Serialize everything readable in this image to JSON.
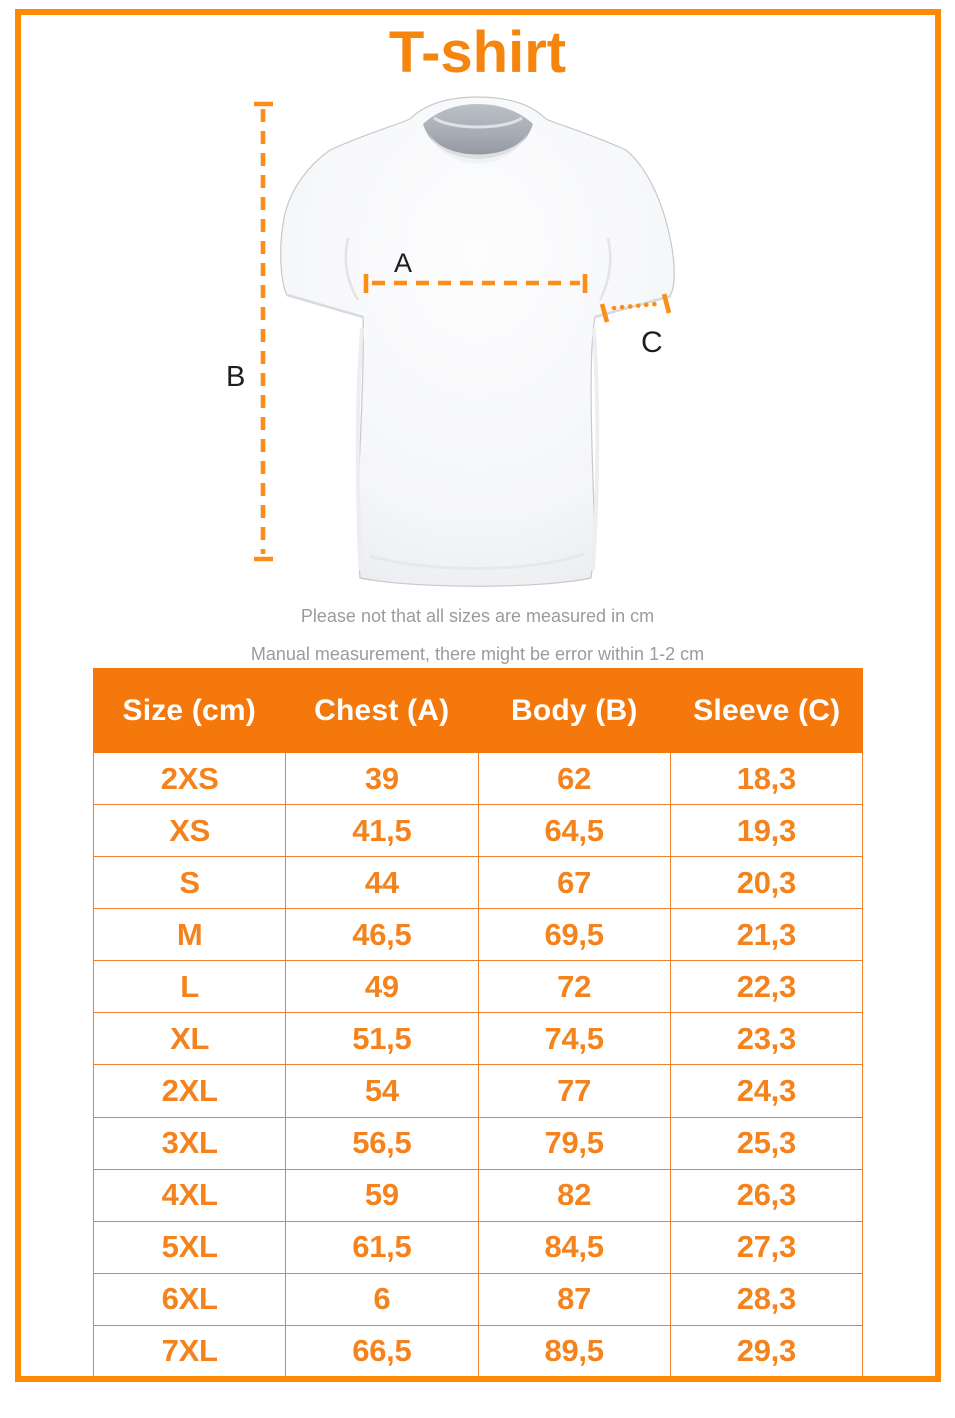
{
  "title": "T-shirt",
  "notes": [
    "Please not that all sizes are measured in cm",
    "Manual measurement, there might be error within 1-2 cm"
  ],
  "diagram": {
    "chest_label": "A",
    "body_label": "B",
    "sleeve_label": "C"
  },
  "chart_data": {
    "type": "table",
    "title": "T-shirt",
    "columns": [
      "Size (cm)",
      "Chest (A)",
      "Body (B)",
      "Sleeve (C)"
    ],
    "rows": [
      [
        "2XS",
        "39",
        "62",
        "18,3"
      ],
      [
        "XS",
        "41,5",
        "64,5",
        "19,3"
      ],
      [
        "S",
        "44",
        "67",
        "20,3"
      ],
      [
        "M",
        "46,5",
        "69,5",
        "21,3"
      ],
      [
        "L",
        "49",
        "72",
        "22,3"
      ],
      [
        "XL",
        "51,5",
        "74,5",
        "23,3"
      ],
      [
        "2XL",
        "54",
        "77",
        "24,3"
      ],
      [
        "3XL",
        "56,5",
        "79,5",
        "25,3"
      ],
      [
        "4XL",
        "59",
        "82",
        "26,3"
      ],
      [
        "5XL",
        "61,5",
        "84,5",
        "27,3"
      ],
      [
        "6XL",
        "6",
        "87",
        "28,3"
      ],
      [
        "7XL",
        "66,5",
        "89,5",
        "29,3"
      ]
    ],
    "units": "cm"
  },
  "colors": {
    "accent_orange": "#F6850E",
    "frame_orange": "#FC8A05",
    "header_orange": "#F5780D",
    "cell_orange": "#F5831D",
    "border_orange": "#F07F2E",
    "dash_orange": "#FA8E18",
    "note_gray": "#9B9B9B"
  }
}
